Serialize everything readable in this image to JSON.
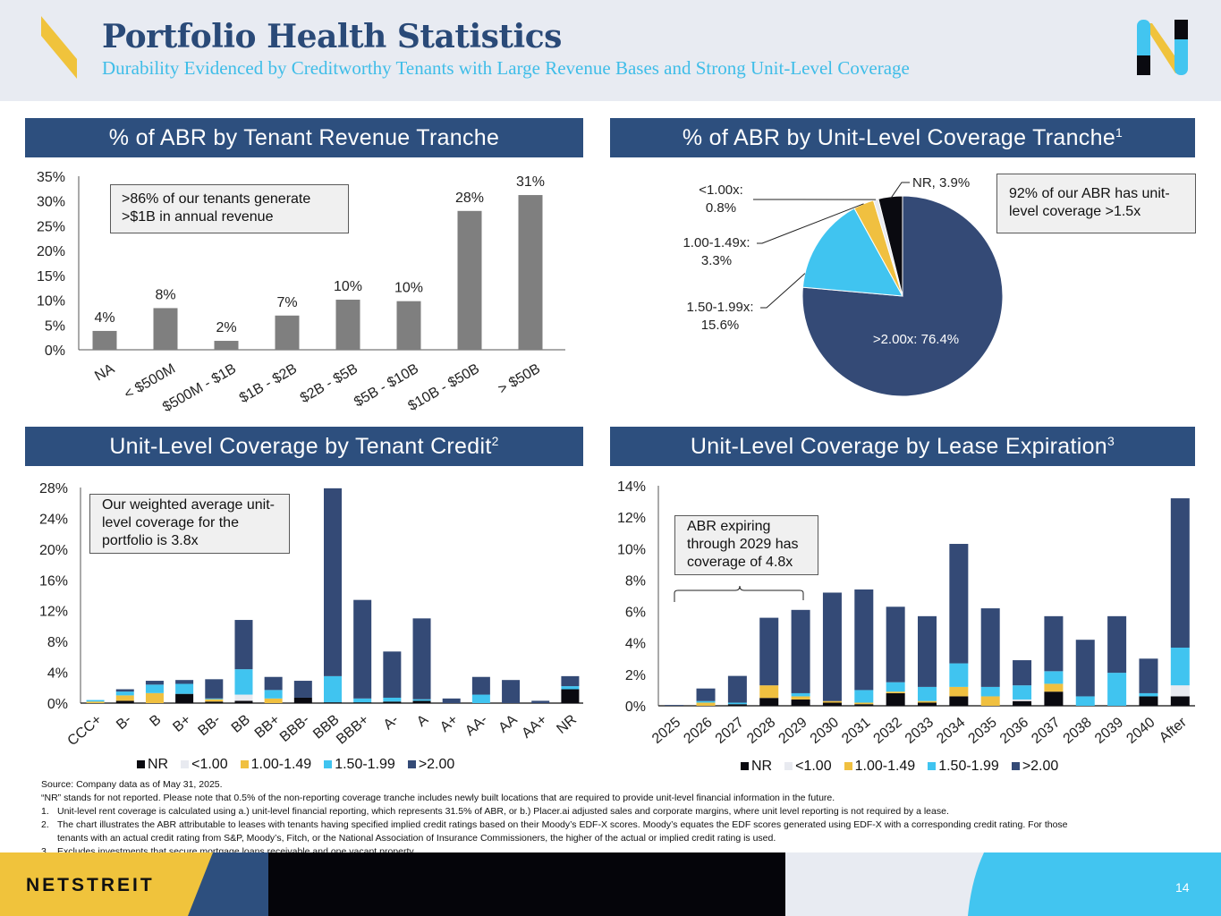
{
  "header": {
    "title": "Portfolio Health Statistics",
    "subtitle": "Durability Evidenced by Creditworthy Tenants with Large Revenue Bases and Strong Unit-Level Coverage"
  },
  "colors": {
    "navy": "#2d4f7e",
    "dark_navy": "#344a76",
    "gray_bar": "#7f7f7f",
    "nr": "#0a0a10",
    "lt1": "#e8eaf0",
    "c100": "#f0c040",
    "c150": "#40c4f0",
    "c200": "#344a76",
    "yellow": "#f0c33c",
    "cyan": "#42c5f0"
  },
  "panels": {
    "p1": {
      "title": "% of ABR by Tenant Revenue Tranche",
      "sup": ""
    },
    "p2": {
      "title": "% of ABR by Unit-Level Coverage Tranche",
      "sup": "1"
    },
    "p3": {
      "title": "Unit-Level Coverage by Tenant Credit",
      "sup": "2"
    },
    "p4": {
      "title": "Unit-Level Coverage by Lease Expiration",
      "sup": "3"
    }
  },
  "callouts": {
    "c1": ">86% of our tenants generate >$1B in annual revenue",
    "c2": "92% of our ABR has unit-level coverage >1.5x",
    "c3": "Our weighted average unit-level coverage for the portfolio is 3.8x",
    "c4": "ABR expiring through 2029 has coverage of 4.8x"
  },
  "legend": [
    "NR",
    "<1.00",
    "1.00-1.49",
    "1.50-1.99",
    ">2.00"
  ],
  "chart_data": [
    {
      "type": "bar",
      "title": "% of ABR by Tenant Revenue Tranche",
      "categories": [
        "NA",
        "< $500M",
        "$500M - $1B",
        "$1B - $2B",
        "$2B - $5B",
        "$5B - $10B",
        "$10B - $50B",
        "> $50B"
      ],
      "values": [
        3.8,
        8.4,
        1.8,
        6.9,
        10.1,
        9.8,
        28.0,
        31.2
      ],
      "data_labels": [
        "4%",
        "8%",
        "2%",
        "7%",
        "10%",
        "10%",
        "28%",
        "31%"
      ],
      "ylim": [
        0,
        35
      ],
      "yticks": [
        "0%",
        "5%",
        "10%",
        "15%",
        "20%",
        "25%",
        "30%",
        "35%"
      ],
      "xlabel": "",
      "ylabel": "",
      "grid": false
    },
    {
      "type": "pie",
      "title": "% of ABR by Unit-Level Coverage Tranche",
      "slices": [
        {
          "label": "NR",
          "value": 3.9,
          "text": "NR, 3.9%"
        },
        {
          "label": ">2.00x",
          "value": 76.4,
          "text": ">2.00x: 76.4%"
        },
        {
          "label": "1.50-1.99x",
          "value": 15.6,
          "text": "1.50-1.99x: 15.6%"
        },
        {
          "label": "1.00-1.49x",
          "value": 3.3,
          "text": "1.00-1.49x: 3.3%"
        },
        {
          "label": "<1.00x",
          "value": 0.8,
          "text": "<1.00x: 0.8%"
        }
      ]
    },
    {
      "type": "bar",
      "stacked": true,
      "title": "Unit-Level Coverage by Tenant Credit",
      "categories": [
        "CCC+",
        "B-",
        "B",
        "B+",
        "BB-",
        "BB",
        "BB+",
        "BBB-",
        "BBB",
        "BBB+",
        "A-",
        "A",
        "A+",
        "AA-",
        "AA",
        "AA+",
        "NR"
      ],
      "series": [
        {
          "name": "NR",
          "values": [
            0,
            0.3,
            0,
            1.2,
            0.2,
            0.3,
            0,
            0.7,
            0.1,
            0.1,
            0.2,
            0.3,
            0,
            0,
            0,
            0,
            1.8
          ]
        },
        {
          "name": "<1.00",
          "values": [
            0,
            0,
            0,
            0,
            0,
            0.8,
            0,
            0,
            0,
            0,
            0,
            0,
            0,
            0,
            0,
            0,
            0
          ]
        },
        {
          "name": "1.00-1.49",
          "values": [
            0.2,
            0.7,
            1.3,
            0,
            0.3,
            0,
            0.6,
            0,
            0,
            0,
            0,
            0,
            0,
            0,
            0,
            0,
            0
          ]
        },
        {
          "name": "1.50-1.99",
          "values": [
            0.2,
            0.5,
            1.1,
            1.3,
            0.1,
            3.3,
            1.1,
            0,
            3.4,
            0.5,
            0.5,
            0.2,
            0,
            1.1,
            0,
            0,
            0.4
          ]
        },
        {
          "name": ">2.00",
          "values": [
            0,
            0.3,
            0.5,
            0.5,
            2.5,
            6.4,
            1.7,
            2.2,
            24.4,
            12.8,
            6.0,
            10.5,
            0.6,
            2.3,
            3.0,
            0.3,
            1.3
          ]
        }
      ],
      "ylim": [
        0,
        28
      ],
      "yticks": [
        "0%",
        "4%",
        "8%",
        "12%",
        "16%",
        "20%",
        "24%",
        "28%"
      ],
      "legend_position": "bottom"
    },
    {
      "type": "bar",
      "stacked": true,
      "title": "Unit-Level Coverage by Lease Expiration",
      "categories": [
        "2025",
        "2026",
        "2027",
        "2028",
        "2029",
        "2030",
        "2031",
        "2032",
        "2033",
        "2034",
        "2035",
        "2036",
        "2037",
        "2038",
        "2039",
        "2040",
        "After"
      ],
      "series": [
        {
          "name": "NR",
          "values": [
            0,
            0,
            0.1,
            0.5,
            0.4,
            0.2,
            0.1,
            0.8,
            0.2,
            0.6,
            0,
            0.3,
            0.9,
            0,
            0,
            0.6,
            0.6
          ]
        },
        {
          "name": "<1.00",
          "values": [
            0,
            0,
            0,
            0,
            0,
            0,
            0,
            0,
            0,
            0,
            0,
            0.1,
            0,
            0,
            0,
            0,
            0.7
          ]
        },
        {
          "name": "1.00-1.49",
          "values": [
            0,
            0.2,
            0,
            0.8,
            0.2,
            0.1,
            0.1,
            0.1,
            0.1,
            0.6,
            0.6,
            0,
            0.5,
            0,
            0,
            0,
            0
          ]
        },
        {
          "name": "1.50-1.99",
          "values": [
            0,
            0.1,
            0.1,
            0,
            0.2,
            0,
            0.8,
            0.6,
            0.9,
            1.5,
            0.6,
            0.9,
            0.8,
            0.6,
            2.1,
            0.2,
            2.4
          ]
        },
        {
          "name": ">2.00",
          "values": [
            0.05,
            0.8,
            1.7,
            4.3,
            5.3,
            6.9,
            6.4,
            4.8,
            4.5,
            7.6,
            5.0,
            1.6,
            3.5,
            3.6,
            3.6,
            2.2,
            9.5
          ]
        }
      ],
      "ylim": [
        0,
        14
      ],
      "yticks": [
        "0%",
        "2%",
        "4%",
        "6%",
        "8%",
        "10%",
        "12%",
        "14%"
      ],
      "legend_position": "bottom"
    }
  ],
  "footnotes": {
    "source": "Source: Company data as of May 31, 2025.",
    "nr_note": "“NR” stands for not reported. Please note that 0.5% of the non-reporting coverage tranche includes newly built locations that are required to provide unit-level financial information in the future.",
    "items": [
      {
        "n": "1.",
        "text": "Unit-level rent coverage is calculated using a.) unit-level financial reporting, which represents 31.5% of ABR, or b.) Placer.ai adjusted sales and corporate margins, where unit level reporting is not required by a lease."
      },
      {
        "n": "2.",
        "text": "The chart illustrates the ABR attributable to leases with tenants having specified implied credit ratings based on their Moody’s EDF-X scores. Moody’s equates the EDF scores generated using EDF-X with a corresponding credit rating. For those",
        "cont": "tenants with an actual credit rating from S&P, Moody’s, Fitch, or the National Association of Insurance Commissioners, the higher of the actual or implied credit rating is used."
      },
      {
        "n": "3.",
        "text": "Excludes investments that secure mortgage loans receivable and one vacant property."
      }
    ]
  },
  "footer": {
    "brand": "NETSTREIT",
    "page": "14"
  }
}
